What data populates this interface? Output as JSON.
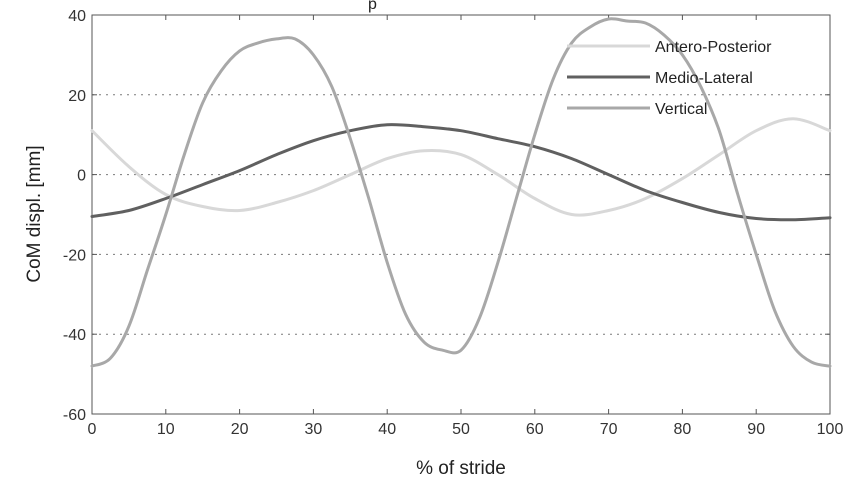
{
  "chart_data": {
    "type": "line",
    "title_fragment": "p",
    "xlabel": "% of stride",
    "ylabel": "CoM displ. [mm]",
    "xlim": [
      0,
      100
    ],
    "ylim": [
      -60,
      40
    ],
    "xticks": [
      0,
      10,
      20,
      30,
      40,
      50,
      60,
      70,
      80,
      90,
      100
    ],
    "yticks": [
      -60,
      -40,
      -20,
      0,
      20,
      40
    ],
    "grid": "dotted horizontal",
    "legend_position": "top-right",
    "series": [
      {
        "name": "Antero-Posterior",
        "color": "#d8d8d8",
        "x": [
          0,
          5,
          10,
          15,
          20,
          25,
          30,
          35,
          40,
          45,
          50,
          55,
          60,
          65,
          70,
          75,
          80,
          85,
          90,
          95,
          100
        ],
        "y": [
          11,
          2,
          -5,
          -8,
          -9,
          -7,
          -4,
          0,
          4,
          6,
          5,
          0,
          -6,
          -10,
          -9,
          -6,
          -1,
          5,
          11,
          14,
          11
        ]
      },
      {
        "name": "Medio-Lateral",
        "color": "#606060",
        "x": [
          0,
          5,
          10,
          15,
          20,
          25,
          30,
          35,
          40,
          45,
          50,
          55,
          60,
          65,
          70,
          75,
          80,
          85,
          90,
          95,
          100
        ],
        "y": [
          -10.5,
          -9,
          -6,
          -2.5,
          1,
          5,
          8.5,
          11,
          12.5,
          12,
          11,
          9,
          7,
          4,
          0,
          -4,
          -7,
          -9.5,
          -11,
          -11.3,
          -10.8
        ]
      },
      {
        "name": "Vertical",
        "color": "#a8a8a8",
        "x": [
          0,
          2.5,
          5,
          7.5,
          10,
          12.5,
          15,
          17.5,
          20,
          22.5,
          25,
          27.5,
          30,
          32.5,
          35,
          37.5,
          40,
          42.5,
          45,
          47.5,
          50,
          52.5,
          55,
          57.5,
          60,
          62.5,
          65,
          67.5,
          70,
          72.5,
          75,
          77.5,
          80,
          82.5,
          85,
          87.5,
          90,
          92.5,
          95,
          97.5,
          100
        ],
        "y": [
          -48,
          -46,
          -38,
          -24,
          -10,
          5,
          18,
          26,
          31,
          33,
          34,
          34,
          30,
          22,
          9,
          -6,
          -22,
          -35,
          -42,
          -44,
          -44,
          -36,
          -22,
          -6,
          10,
          24,
          33,
          37,
          39,
          38.5,
          38,
          35,
          30,
          22,
          11,
          -5,
          -20,
          -34,
          -43,
          -47,
          -48
        ]
      }
    ]
  }
}
